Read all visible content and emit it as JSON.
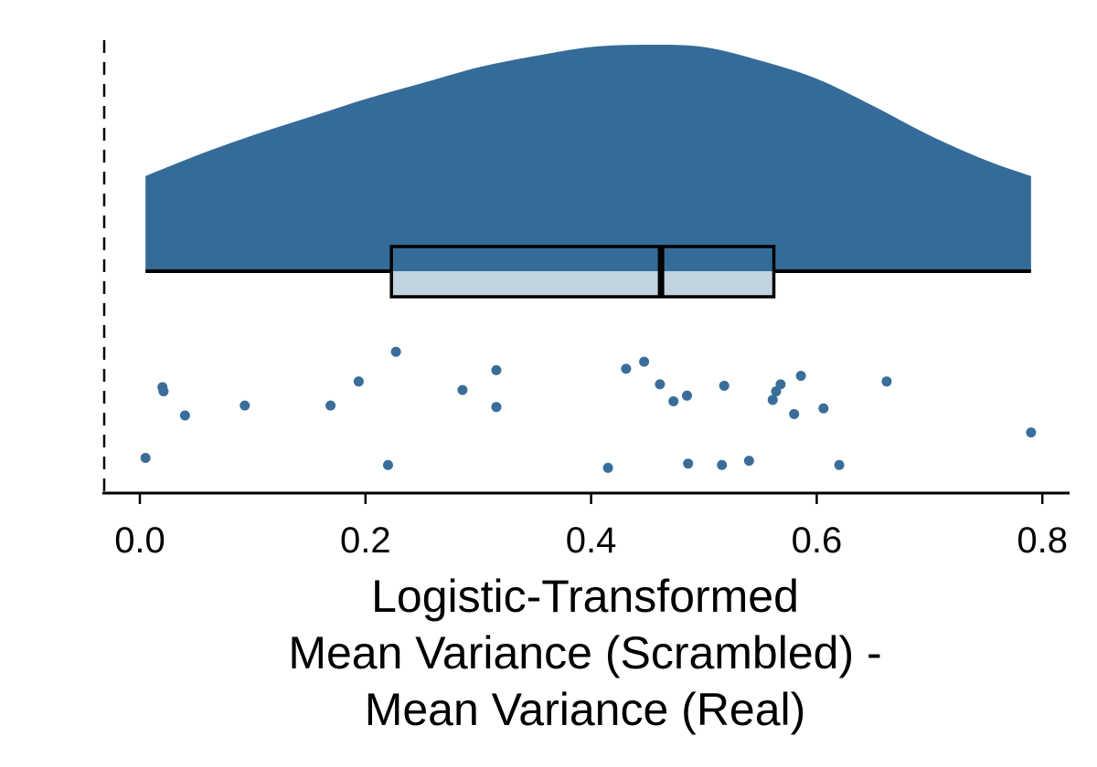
{
  "chart_data": {
    "type": "raincloud",
    "xlabel_lines": [
      "Logistic-Transformed",
      "Mean Variance (Scrambled) -",
      "Mean Variance (Real)"
    ],
    "ylabel": "",
    "xlim": [
      -0.03,
      0.82
    ],
    "x_ticks": [
      0.0,
      0.2,
      0.4,
      0.6,
      0.8
    ],
    "x_tick_labels": [
      "0.0",
      "0.2",
      "0.4",
      "0.6",
      "0.8"
    ],
    "reference_line_x": -0.03,
    "reference_line_style": "dashed",
    "grid": false,
    "colors": {
      "density_fill": "#356b98",
      "box_lower_fill": "#c1d3df",
      "points": "#3a6d99",
      "outline": "#000000"
    },
    "density": {
      "x": [
        0.005,
        0.05,
        0.1,
        0.15,
        0.2,
        0.25,
        0.3,
        0.35,
        0.4,
        0.45,
        0.5,
        0.55,
        0.6,
        0.65,
        0.7,
        0.75,
        0.79
      ],
      "y": [
        0.42,
        0.51,
        0.6,
        0.68,
        0.76,
        0.83,
        0.9,
        0.95,
        0.99,
        1.0,
        0.99,
        0.93,
        0.85,
        0.73,
        0.6,
        0.49,
        0.42
      ]
    },
    "boxplot": {
      "q1": 0.223,
      "median": 0.462,
      "q3": 0.562,
      "whisker_low": 0.005,
      "whisker_high": 0.79
    },
    "points": [
      {
        "x": 0.005,
        "y": 0.1
      },
      {
        "x": 0.02,
        "y": 0.6
      },
      {
        "x": 0.021,
        "y": 0.57
      },
      {
        "x": 0.04,
        "y": 0.4
      },
      {
        "x": 0.093,
        "y": 0.47
      },
      {
        "x": 0.169,
        "y": 0.47
      },
      {
        "x": 0.194,
        "y": 0.64
      },
      {
        "x": 0.22,
        "y": 0.05
      },
      {
        "x": 0.227,
        "y": 0.85
      },
      {
        "x": 0.286,
        "y": 0.58
      },
      {
        "x": 0.316,
        "y": 0.72
      },
      {
        "x": 0.316,
        "y": 0.46
      },
      {
        "x": 0.415,
        "y": 0.03
      },
      {
        "x": 0.431,
        "y": 0.73
      },
      {
        "x": 0.447,
        "y": 0.78
      },
      {
        "x": 0.461,
        "y": 0.62
      },
      {
        "x": 0.473,
        "y": 0.5
      },
      {
        "x": 0.485,
        "y": 0.54
      },
      {
        "x": 0.486,
        "y": 0.06
      },
      {
        "x": 0.516,
        "y": 0.05
      },
      {
        "x": 0.518,
        "y": 0.61
      },
      {
        "x": 0.54,
        "y": 0.08
      },
      {
        "x": 0.561,
        "y": 0.51
      },
      {
        "x": 0.564,
        "y": 0.57
      },
      {
        "x": 0.568,
        "y": 0.62
      },
      {
        "x": 0.58,
        "y": 0.41
      },
      {
        "x": 0.586,
        "y": 0.68
      },
      {
        "x": 0.606,
        "y": 0.45
      },
      {
        "x": 0.62,
        "y": 0.05
      },
      {
        "x": 0.662,
        "y": 0.64
      },
      {
        "x": 0.79,
        "y": 0.28
      }
    ]
  }
}
